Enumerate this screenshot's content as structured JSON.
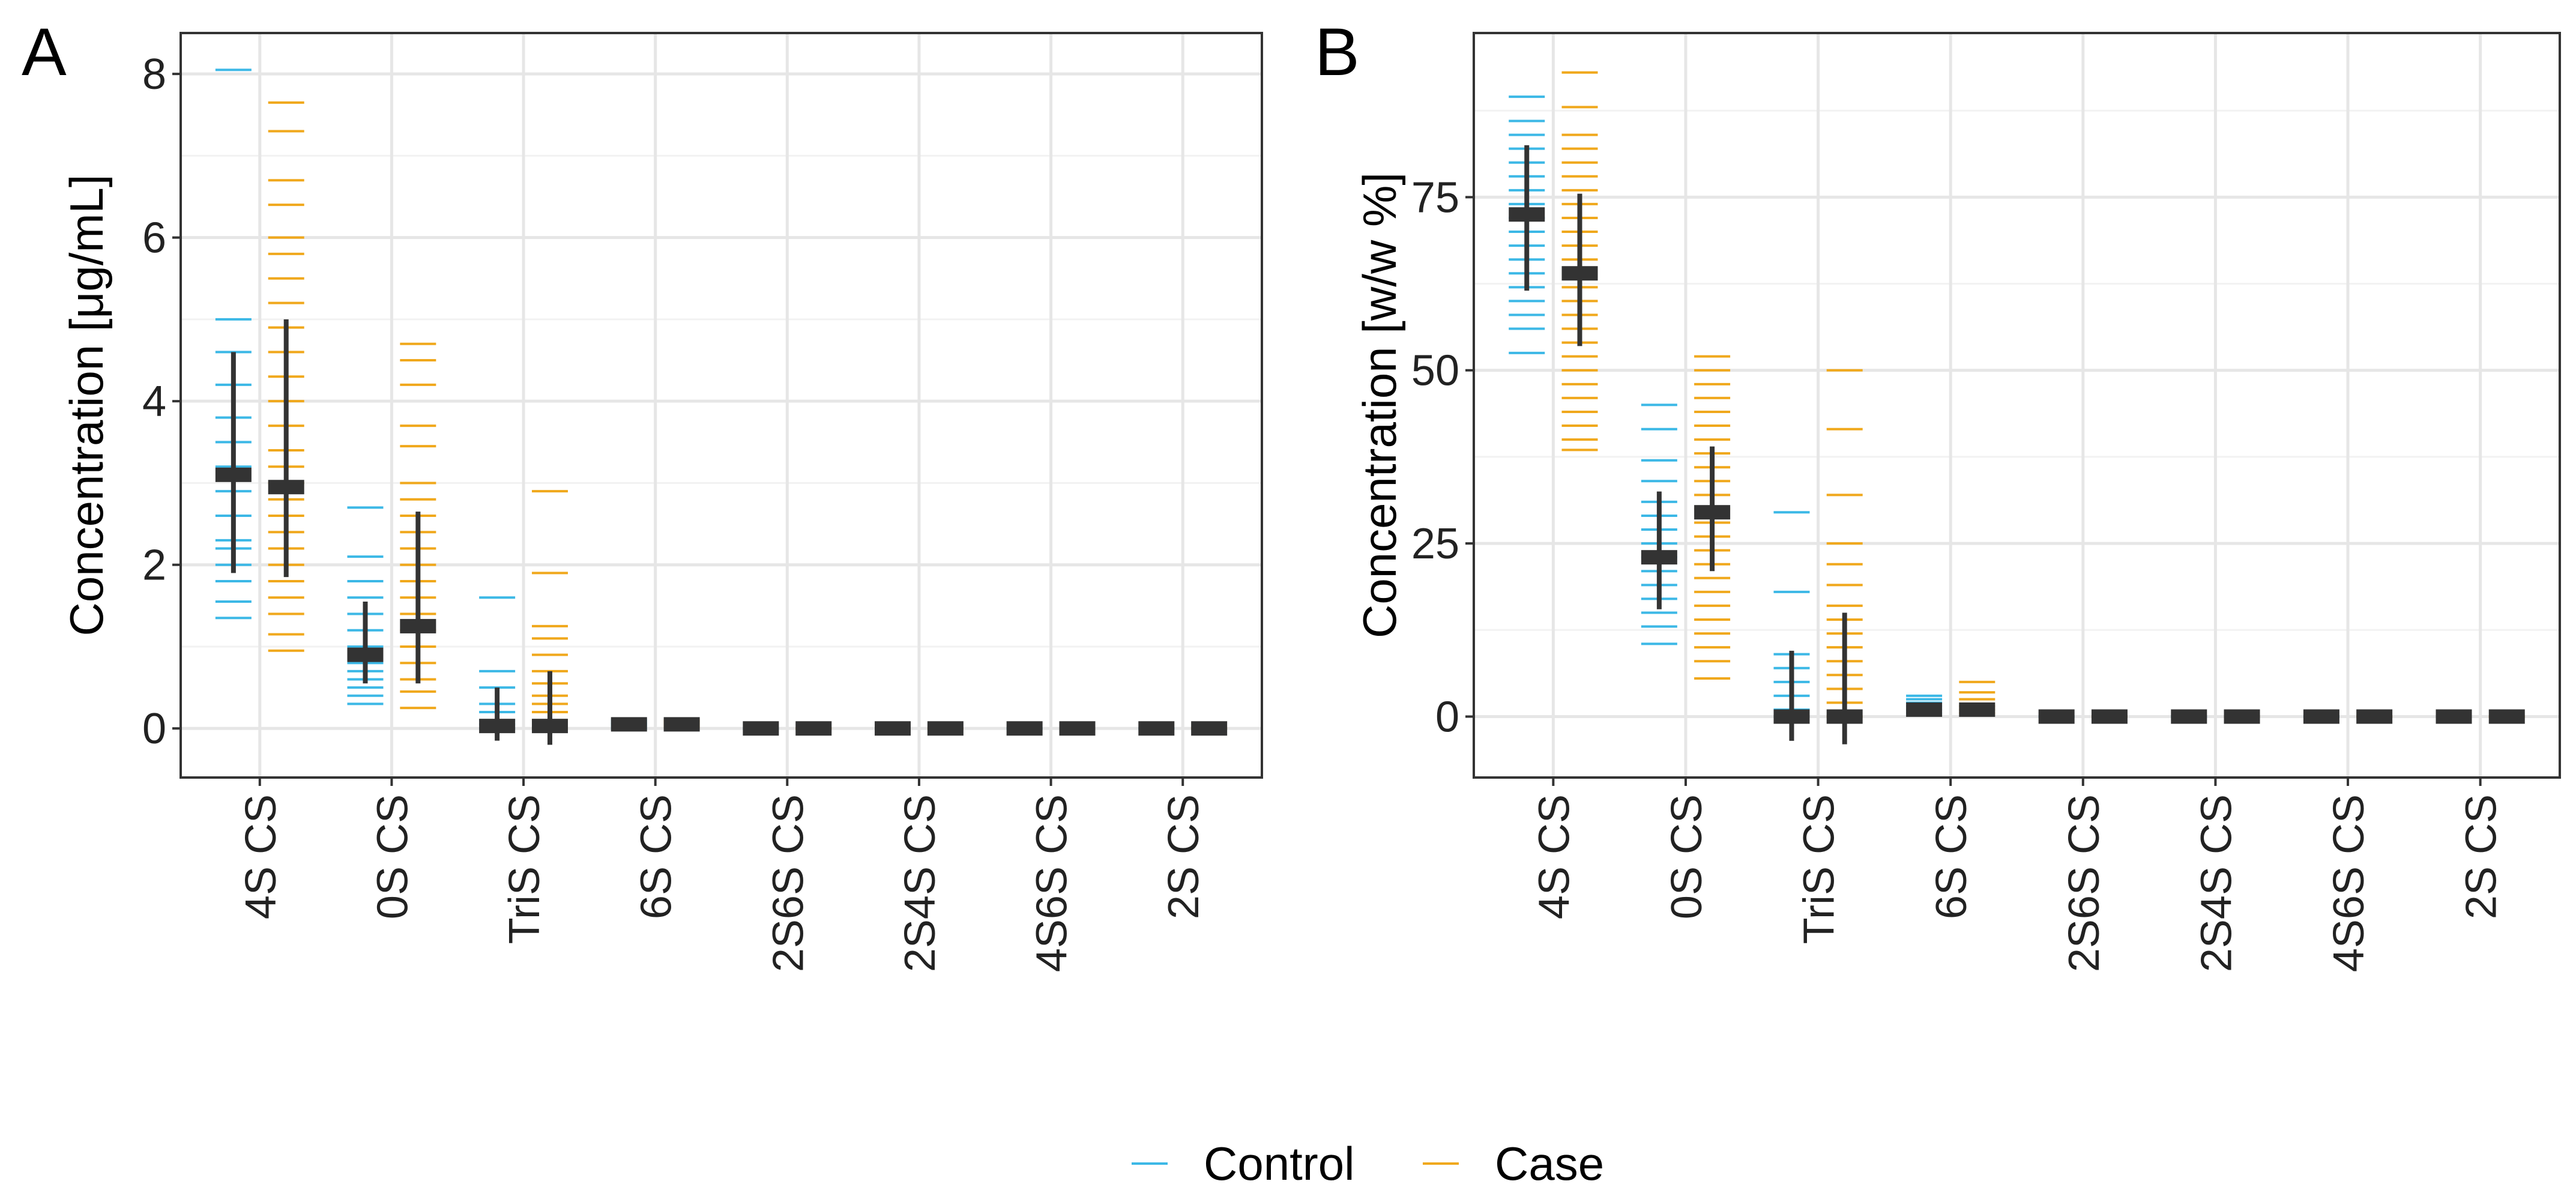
{
  "chart_data": [
    {
      "type": "strip",
      "panel": "A",
      "ylabel": "Concentration [μg/mL]",
      "categories": [
        "4S CS",
        "0S CS",
        "TriS CS",
        "6S CS",
        "2S6S CS",
        "2S4S CS",
        "4S6S CS",
        "2S CS"
      ],
      "ylim": [
        -0.6,
        8.5
      ],
      "yticks": [
        0,
        2,
        4,
        6,
        8
      ],
      "yminor": [
        1,
        3,
        5,
        7
      ],
      "grid": true,
      "series": [
        {
          "values": [
            3.1,
            0.9,
            0.03,
            0.05,
            0,
            0,
            0,
            0
          ],
          "lower": [
            1.9,
            0.55,
            -0.15,
            0.03,
            0,
            0,
            0,
            0
          ],
          "upper": [
            4.6,
            1.55,
            0.5,
            0.07,
            0,
            0,
            0,
            0
          ],
          "points": [
            [
              8.05,
              5.0,
              4.6,
              4.2,
              3.8,
              3.5,
              3.2,
              2.9,
              2.6,
              2.3,
              2.2,
              2.0,
              1.8,
              1.55,
              1.35
            ],
            [
              2.7,
              2.1,
              1.8,
              1.6,
              1.4,
              1.2,
              1.0,
              0.9,
              0.8,
              0.7,
              0.6,
              0.5,
              0.4,
              0.3
            ],
            [
              1.6,
              0.7,
              0.5,
              0.3,
              0.2,
              0.1,
              0.05,
              0
            ],
            [
              0.1,
              0.07,
              0.05,
              0.03,
              0
            ],
            [
              0
            ],
            [
              0
            ],
            [
              0
            ],
            [
              0
            ]
          ]
        },
        {
          "values": [
            2.95,
            1.25,
            0.03,
            0.05,
            0,
            0,
            0,
            0
          ],
          "lower": [
            1.85,
            0.55,
            -0.2,
            0.03,
            0,
            0,
            0,
            0
          ],
          "upper": [
            5.0,
            2.65,
            0.7,
            0.07,
            0,
            0,
            0,
            0
          ],
          "points": [
            [
              7.65,
              7.3,
              6.7,
              6.4,
              6.0,
              5.8,
              5.5,
              5.2,
              4.9,
              4.6,
              4.3,
              4.0,
              3.7,
              3.4,
              3.2,
              3.0,
              2.8,
              2.6,
              2.4,
              2.2,
              2.0,
              1.8,
              1.6,
              1.4,
              1.15,
              0.95
            ],
            [
              4.7,
              4.5,
              4.2,
              3.7,
              3.45,
              3.0,
              2.8,
              2.6,
              2.4,
              2.2,
              2.0,
              1.8,
              1.6,
              1.4,
              1.2,
              1.0,
              0.8,
              0.6,
              0.45,
              0.25
            ],
            [
              2.9,
              1.9,
              1.25,
              1.1,
              0.9,
              0.7,
              0.55,
              0.4,
              0.3,
              0.2,
              0.1,
              0
            ],
            [
              0.1,
              0.08,
              0.05,
              0.02
            ],
            [
              0
            ],
            [
              0
            ],
            [
              0
            ],
            [
              0
            ]
          ]
        }
      ]
    },
    {
      "type": "strip",
      "panel": "B",
      "ylabel": "Concentration [w/w %]",
      "categories": [
        "4S CS",
        "0S CS",
        "TriS CS",
        "6S CS",
        "2S6S CS",
        "2S4S CS",
        "4S6S CS",
        "2S CS"
      ],
      "ylim": [
        -8.8,
        98.7
      ],
      "yticks": [
        0,
        25,
        50,
        75
      ],
      "yminor": [
        12.5,
        37.5,
        62.5,
        87.5
      ],
      "grid": true,
      "series": [
        {
          "values": [
            72.5,
            23,
            0,
            1,
            0,
            0,
            0,
            0
          ],
          "lower": [
            61.5,
            15.5,
            -3.5,
            0.5,
            0,
            0,
            0,
            0
          ],
          "upper": [
            82.5,
            32.5,
            9.5,
            1.5,
            0,
            0,
            0,
            0
          ],
          "points": [
            [
              89.5,
              86,
              84,
              82,
              80,
              78,
              76,
              74,
              72,
              70,
              68,
              66,
              64,
              62,
              60,
              58,
              56,
              52.5
            ],
            [
              45,
              41.5,
              37,
              34,
              31,
              29,
              27,
              25,
              23,
              21,
              19,
              17,
              15,
              13,
              10.5
            ],
            [
              29.5,
              18,
              9,
              7,
              5,
              3,
              1,
              0
            ],
            [
              3,
              2.5,
              2,
              1.5,
              1,
              0.5
            ],
            [
              0
            ],
            [
              0
            ],
            [
              0
            ],
            [
              0
            ]
          ]
        },
        {
          "values": [
            64,
            29.5,
            0,
            1,
            0,
            0,
            0,
            0
          ],
          "lower": [
            53.5,
            21,
            -4,
            0.5,
            0,
            0,
            0,
            0
          ],
          "upper": [
            75.5,
            39,
            15,
            1.5,
            0,
            0,
            0,
            0
          ],
          "points": [
            [
              93,
              88,
              84,
              82,
              80,
              78,
              76,
              74,
              72,
              70,
              68,
              66,
              64,
              62,
              60,
              58,
              56,
              54,
              52,
              50,
              48,
              46,
              44,
              42,
              40,
              38.5
            ],
            [
              52,
              50,
              48,
              46,
              44,
              42,
              40,
              38,
              36,
              34,
              32,
              30,
              28,
              26,
              24,
              22,
              20,
              18,
              16,
              14,
              12,
              10,
              8,
              5.5
            ],
            [
              50,
              41.5,
              32,
              25,
              22,
              19,
              16,
              14,
              12,
              10,
              8,
              6,
              4,
              2,
              0
            ],
            [
              5,
              3.5,
              2.5,
              1.5,
              1,
              0.5
            ],
            [
              0
            ],
            [
              0
            ],
            [
              0
            ],
            [
              0
            ]
          ]
        }
      ]
    }
  ],
  "legend": [
    {
      "name": "Control",
      "color": "#3cb8e6"
    },
    {
      "name": "Case",
      "color": "#f0a81c"
    }
  ],
  "mean_color": "#333333"
}
